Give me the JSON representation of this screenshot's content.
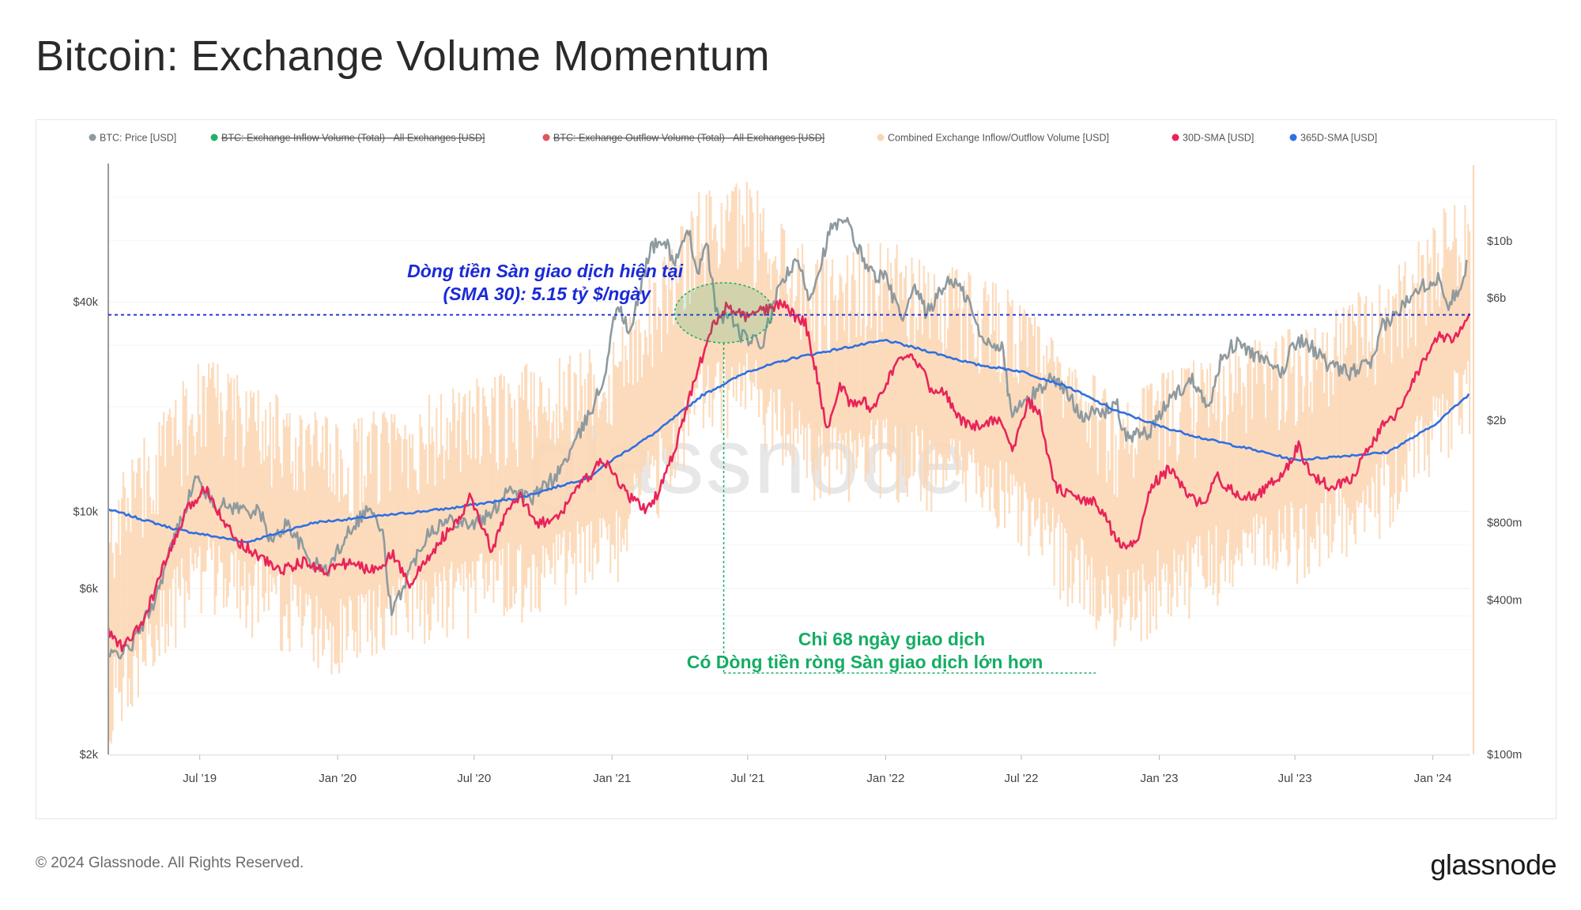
{
  "title": "Bitcoin: Exchange Volume Momentum",
  "copyright": "© 2024 Glassnode. All Rights Reserved.",
  "brand": "glassnode",
  "watermark": "glassnode",
  "colors": {
    "price": "#8e9a9f",
    "inflow": "#1fb36a",
    "outflow": "#e0555a",
    "combined": "#fbd6b3",
    "sma30": "#e8245a",
    "sma365": "#2f6fe2",
    "annotation_blue": "#1a2ad6",
    "annotation_green": "#14ad63"
  },
  "chart_data": {
    "type": "line",
    "title": "Bitcoin: Exchange Volume Momentum",
    "legend": [
      {
        "label": "BTC: Price [USD]",
        "color": "#8e9a9f",
        "disabled": false
      },
      {
        "label": "BTC: Exchange Inflow Volume (Total) - All Exchanges [USD]",
        "color": "#1fb36a",
        "disabled": true
      },
      {
        "label": "BTC: Exchange Outflow Volume (Total) - All Exchanges [USD]",
        "color": "#e0555a",
        "disabled": true
      },
      {
        "label": "Combined Exchange Inflow/Outflow Volume [USD]",
        "color": "#fbd6b3",
        "disabled": false
      },
      {
        "label": "30D-SMA [USD]",
        "color": "#e8245a",
        "disabled": false
      },
      {
        "label": "365D-SMA [USD]",
        "color": "#2f6fe2",
        "disabled": false
      }
    ],
    "x_range": [
      "2019-03-01",
      "2024-02-20"
    ],
    "x_ticks": [
      {
        "date": "2019-07-01",
        "label": "Jul '19"
      },
      {
        "date": "2020-01-01",
        "label": "Jan '20"
      },
      {
        "date": "2020-07-01",
        "label": "Jul '20"
      },
      {
        "date": "2021-01-01",
        "label": "Jan '21"
      },
      {
        "date": "2021-07-01",
        "label": "Jul '21"
      },
      {
        "date": "2022-01-01",
        "label": "Jan '22"
      },
      {
        "date": "2022-07-01",
        "label": "Jul '22"
      },
      {
        "date": "2023-01-01",
        "label": "Jan '23"
      },
      {
        "date": "2023-07-01",
        "label": "Jul '23"
      },
      {
        "date": "2024-01-01",
        "label": "Jan '24"
      }
    ],
    "y_left": {
      "scale": "log",
      "range": [
        2000,
        100000
      ],
      "ticks": [
        {
          "value": 40000,
          "label": "$40k"
        },
        {
          "value": 10000,
          "label": "$10k"
        },
        {
          "value": 6000,
          "label": "$6k"
        },
        {
          "value": 2000,
          "label": "$2k"
        }
      ]
    },
    "y_right": {
      "scale": "log",
      "range": [
        100000000,
        20000000000
      ],
      "ticks": [
        {
          "value": 10000000000,
          "label": "$10b"
        },
        {
          "value": 6000000000,
          "label": "$6b"
        },
        {
          "value": 2000000000,
          "label": "$2b"
        },
        {
          "value": 800000000,
          "label": "$800m"
        },
        {
          "value": 400000000,
          "label": "$400m"
        },
        {
          "value": 100000000,
          "label": "$100m"
        }
      ]
    },
    "series": [
      {
        "name": "BTC: Price [USD]",
        "axis": "left",
        "points": [
          [
            "2019-03-01",
            3800
          ],
          [
            "2019-04-01",
            4100
          ],
          [
            "2019-05-01",
            5500
          ],
          [
            "2019-05-25",
            8000
          ],
          [
            "2019-06-26",
            12500
          ],
          [
            "2019-07-20",
            10500
          ],
          [
            "2019-08-15",
            10300
          ],
          [
            "2019-09-20",
            9900
          ],
          [
            "2019-10-05",
            8100
          ],
          [
            "2019-10-26",
            9300
          ],
          [
            "2019-11-25",
            7200
          ],
          [
            "2019-12-18",
            6700
          ],
          [
            "2020-01-15",
            8800
          ],
          [
            "2020-02-12",
            10300
          ],
          [
            "2020-03-01",
            8600
          ],
          [
            "2020-03-13",
            5000
          ],
          [
            "2020-04-01",
            6400
          ],
          [
            "2020-05-01",
            8800
          ],
          [
            "2020-06-01",
            9500
          ],
          [
            "2020-07-01",
            9200
          ],
          [
            "2020-07-25",
            9800
          ],
          [
            "2020-08-15",
            11800
          ],
          [
            "2020-09-15",
            10800
          ],
          [
            "2020-10-20",
            12800
          ],
          [
            "2020-11-15",
            16000
          ],
          [
            "2020-12-01",
            19000
          ],
          [
            "2020-12-20",
            23500
          ],
          [
            "2021-01-08",
            40000
          ],
          [
            "2021-01-25",
            32000
          ],
          [
            "2021-02-10",
            46000
          ],
          [
            "2021-02-21",
            57000
          ],
          [
            "2021-03-13",
            60000
          ],
          [
            "2021-03-25",
            52000
          ],
          [
            "2021-04-14",
            63000
          ],
          [
            "2021-04-25",
            49000
          ],
          [
            "2021-05-08",
            58000
          ],
          [
            "2021-05-20",
            37000
          ],
          [
            "2021-06-10",
            36000
          ],
          [
            "2021-06-22",
            32000
          ],
          [
            "2021-07-20",
            30000
          ],
          [
            "2021-08-15",
            46000
          ],
          [
            "2021-09-06",
            52000
          ],
          [
            "2021-09-22",
            41000
          ],
          [
            "2021-10-20",
            65000
          ],
          [
            "2021-11-10",
            68000
          ],
          [
            "2021-11-25",
            57000
          ],
          [
            "2021-12-15",
            48000
          ],
          [
            "2022-01-01",
            47000
          ],
          [
            "2022-01-24",
            35000
          ],
          [
            "2022-02-10",
            44000
          ],
          [
            "2022-02-24",
            37000
          ],
          [
            "2022-03-28",
            47000
          ],
          [
            "2022-04-20",
            41000
          ],
          [
            "2022-05-09",
            31000
          ],
          [
            "2022-06-05",
            30000
          ],
          [
            "2022-06-18",
            19000
          ],
          [
            "2022-07-10",
            21000
          ],
          [
            "2022-08-13",
            24500
          ],
          [
            "2022-09-20",
            19000
          ],
          [
            "2022-10-20",
            19200
          ],
          [
            "2022-11-05",
            21000
          ],
          [
            "2022-11-12",
            16500
          ],
          [
            "2022-12-20",
            16800
          ],
          [
            "2023-01-14",
            21000
          ],
          [
            "2023-02-15",
            24000
          ],
          [
            "2023-03-10",
            20000
          ],
          [
            "2023-03-25",
            28000
          ],
          [
            "2023-04-14",
            30500
          ],
          [
            "2023-05-20",
            27000
          ],
          [
            "2023-06-15",
            25000
          ],
          [
            "2023-06-28",
            30500
          ],
          [
            "2023-07-15",
            31000
          ],
          [
            "2023-08-17",
            26000
          ],
          [
            "2023-09-11",
            25000
          ],
          [
            "2023-10-15",
            27000
          ],
          [
            "2023-10-25",
            34000
          ],
          [
            "2023-11-15",
            37000
          ],
          [
            "2023-12-08",
            44000
          ],
          [
            "2024-01-11",
            46500
          ],
          [
            "2024-01-22",
            39500
          ],
          [
            "2024-02-08",
            45000
          ],
          [
            "2024-02-15",
            52000
          ]
        ]
      },
      {
        "name": "30D-SMA [USD]",
        "axis": "right",
        "points": [
          [
            "2019-03-01",
            300000000
          ],
          [
            "2019-03-20",
            260000000
          ],
          [
            "2019-04-15",
            320000000
          ],
          [
            "2019-05-15",
            550000000
          ],
          [
            "2019-06-15",
            900000000
          ],
          [
            "2019-07-10",
            1100000000
          ],
          [
            "2019-07-25",
            900000000
          ],
          [
            "2019-08-15",
            700000000
          ],
          [
            "2019-09-15",
            600000000
          ],
          [
            "2019-10-15",
            520000000
          ],
          [
            "2019-11-15",
            560000000
          ],
          [
            "2019-12-15",
            520000000
          ],
          [
            "2020-01-15",
            560000000
          ],
          [
            "2020-02-15",
            520000000
          ],
          [
            "2020-03-15",
            600000000
          ],
          [
            "2020-04-05",
            460000000
          ],
          [
            "2020-04-25",
            550000000
          ],
          [
            "2020-05-20",
            700000000
          ],
          [
            "2020-06-10",
            800000000
          ],
          [
            "2020-06-25",
            1000000000
          ],
          [
            "2020-07-10",
            800000000
          ],
          [
            "2020-07-25",
            620000000
          ],
          [
            "2020-08-15",
            900000000
          ],
          [
            "2020-09-01",
            1000000000
          ],
          [
            "2020-09-25",
            800000000
          ],
          [
            "2020-10-20",
            820000000
          ],
          [
            "2020-11-10",
            1050000000
          ],
          [
            "2020-11-30",
            1200000000
          ],
          [
            "2020-12-20",
            1400000000
          ],
          [
            "2021-01-10",
            1150000000
          ],
          [
            "2021-01-25",
            1000000000
          ],
          [
            "2021-02-15",
            900000000
          ],
          [
            "2021-02-28",
            1000000000
          ],
          [
            "2021-03-25",
            1500000000
          ],
          [
            "2021-04-15",
            2500000000
          ],
          [
            "2021-05-01",
            3500000000
          ],
          [
            "2021-05-15",
            4600000000
          ],
          [
            "2021-06-01",
            5500000000
          ],
          [
            "2021-06-15",
            5300000000
          ],
          [
            "2021-07-01",
            5000000000
          ],
          [
            "2021-07-15",
            5300000000
          ],
          [
            "2021-08-01",
            5400000000
          ],
          [
            "2021-08-15",
            5800000000
          ],
          [
            "2021-09-01",
            5100000000
          ],
          [
            "2021-09-15",
            4900000000
          ],
          [
            "2021-10-01",
            3000000000
          ],
          [
            "2021-10-15",
            1800000000
          ],
          [
            "2021-11-01",
            2800000000
          ],
          [
            "2021-11-15",
            2300000000
          ],
          [
            "2021-12-01",
            2400000000
          ],
          [
            "2021-12-15",
            2200000000
          ],
          [
            "2022-01-01",
            2800000000
          ],
          [
            "2022-01-20",
            3400000000
          ],
          [
            "2022-02-10",
            3500000000
          ],
          [
            "2022-03-01",
            2700000000
          ],
          [
            "2022-03-20",
            2600000000
          ],
          [
            "2022-04-10",
            2000000000
          ],
          [
            "2022-05-01",
            1900000000
          ],
          [
            "2022-05-20",
            2000000000
          ],
          [
            "2022-06-05",
            2000000000
          ],
          [
            "2022-06-20",
            1500000000
          ],
          [
            "2022-07-10",
            2400000000
          ],
          [
            "2022-07-25",
            2100000000
          ],
          [
            "2022-08-15",
            1100000000
          ],
          [
            "2022-09-10",
            1000000000
          ],
          [
            "2022-10-10",
            950000000
          ],
          [
            "2022-11-10",
            650000000
          ],
          [
            "2022-12-01",
            650000000
          ],
          [
            "2022-12-20",
            1100000000
          ],
          [
            "2023-01-15",
            1300000000
          ],
          [
            "2023-02-10",
            1000000000
          ],
          [
            "2023-03-01",
            950000000
          ],
          [
            "2023-03-20",
            1200000000
          ],
          [
            "2023-04-10",
            1050000000
          ],
          [
            "2023-05-10",
            1000000000
          ],
          [
            "2023-06-01",
            1150000000
          ],
          [
            "2023-06-20",
            1300000000
          ],
          [
            "2023-07-05",
            1600000000
          ],
          [
            "2023-07-25",
            1200000000
          ],
          [
            "2023-08-20",
            1100000000
          ],
          [
            "2023-09-15",
            1200000000
          ],
          [
            "2023-10-05",
            1500000000
          ],
          [
            "2023-10-25",
            1900000000
          ],
          [
            "2023-11-20",
            2200000000
          ],
          [
            "2023-12-20",
            3500000000
          ],
          [
            "2024-01-10",
            4200000000
          ],
          [
            "2024-01-25",
            4100000000
          ],
          [
            "2024-02-08",
            4500000000
          ],
          [
            "2024-02-20",
            5150000000
          ]
        ]
      },
      {
        "name": "365D-SMA [USD]",
        "axis": "right",
        "points": [
          [
            "2019-03-01",
            900000000
          ],
          [
            "2019-06-01",
            750000000
          ],
          [
            "2019-09-01",
            670000000
          ],
          [
            "2019-12-01",
            800000000
          ],
          [
            "2020-03-01",
            850000000
          ],
          [
            "2020-06-01",
            910000000
          ],
          [
            "2020-09-01",
            1000000000
          ],
          [
            "2020-12-01",
            1200000000
          ],
          [
            "2021-01-01",
            1400000000
          ],
          [
            "2021-03-01",
            1800000000
          ],
          [
            "2021-05-01",
            2500000000
          ],
          [
            "2021-07-01",
            3100000000
          ],
          [
            "2021-09-01",
            3500000000
          ],
          [
            "2021-11-01",
            3800000000
          ],
          [
            "2022-01-01",
            4100000000
          ],
          [
            "2022-03-01",
            3700000000
          ],
          [
            "2022-05-01",
            3300000000
          ],
          [
            "2022-07-01",
            3100000000
          ],
          [
            "2022-09-01",
            2700000000
          ],
          [
            "2022-11-01",
            2200000000
          ],
          [
            "2023-01-01",
            1900000000
          ],
          [
            "2023-03-01",
            1700000000
          ],
          [
            "2023-05-01",
            1550000000
          ],
          [
            "2023-07-01",
            1400000000
          ],
          [
            "2023-09-01",
            1450000000
          ],
          [
            "2023-11-01",
            1500000000
          ],
          [
            "2024-01-01",
            1900000000
          ],
          [
            "2024-02-20",
            2550000000
          ]
        ]
      },
      {
        "name": "Combined Exchange Inflow/Outflow Volume [USD]",
        "axis": "right",
        "note": "daily spikes oscillating around 30D-SMA",
        "levels": [
          [
            "2019-03-01",
            300000000
          ],
          [
            "2019-07-01",
            1000000000
          ],
          [
            "2020-01-01",
            550000000
          ],
          [
            "2020-07-01",
            800000000
          ],
          [
            "2021-01-01",
            1200000000
          ],
          [
            "2021-05-01",
            4500000000
          ],
          [
            "2021-07-01",
            5000000000
          ],
          [
            "2021-10-01",
            2500000000
          ],
          [
            "2022-01-01",
            2800000000
          ],
          [
            "2022-06-01",
            2000000000
          ],
          [
            "2022-11-01",
            700000000
          ],
          [
            "2023-03-01",
            1000000000
          ],
          [
            "2023-07-01",
            1300000000
          ],
          [
            "2023-11-01",
            2000000000
          ],
          [
            "2024-02-20",
            5000000000
          ]
        ]
      }
    ],
    "annotations": [
      {
        "text_lines": [
          "Dòng tiền Sàn giao dịch hiện tại",
          "(SMA 30): 5.15 tỷ $/ngày"
        ],
        "value": 5150000000,
        "color": "#1a2ad6"
      },
      {
        "text_lines": [
          "Chỉ 68 ngày giao dịch",
          "Có Dòng tiền ròng Sàn giao dịch lớn hơn"
        ],
        "date": "2021-05-30",
        "color": "#14ad63"
      }
    ]
  }
}
